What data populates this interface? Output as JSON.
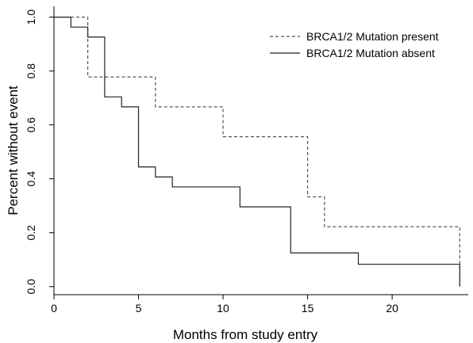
{
  "chart_data": {
    "type": "line",
    "title": "",
    "xlabel": "Months from study entry",
    "ylabel": "Percent without event",
    "xlim": [
      0,
      24.5
    ],
    "ylim": [
      0,
      1.0
    ],
    "xticks": [
      0,
      5,
      10,
      15,
      20
    ],
    "xtick_labels": [
      "0",
      "5",
      "10",
      "15",
      "20"
    ],
    "yticks": [
      0.0,
      0.2,
      0.4,
      0.6,
      0.8,
      1.0
    ],
    "ytick_labels": [
      "0.0",
      "0.2",
      "0.4",
      "0.6",
      "0.8",
      "1.0"
    ],
    "grid": false,
    "legend_position": "top-right",
    "series": [
      {
        "name": "BRCA1/2 Mutation present",
        "style": "dashed",
        "color": "#555555",
        "step": true,
        "x": [
          0,
          2,
          2,
          6,
          6,
          10,
          10,
          15,
          15,
          16,
          16,
          24,
          24
        ],
        "y": [
          1.0,
          1.0,
          0.778,
          0.778,
          0.667,
          0.667,
          0.556,
          0.556,
          0.333,
          0.333,
          0.222,
          0.222,
          0.0
        ]
      },
      {
        "name": "BRCA1/2 Mutation absent",
        "style": "solid",
        "color": "#222222",
        "step": true,
        "x": [
          0,
          1,
          1,
          2,
          2,
          3,
          3,
          4,
          4,
          5,
          5,
          6,
          6,
          7,
          7,
          11,
          11,
          14,
          14,
          18,
          18,
          24,
          24
        ],
        "y": [
          1.0,
          1.0,
          0.963,
          0.963,
          0.926,
          0.926,
          0.704,
          0.704,
          0.667,
          0.667,
          0.444,
          0.444,
          0.407,
          0.407,
          0.37,
          0.37,
          0.296,
          0.296,
          0.125,
          0.125,
          0.083,
          0.083,
          0.0
        ]
      }
    ]
  }
}
